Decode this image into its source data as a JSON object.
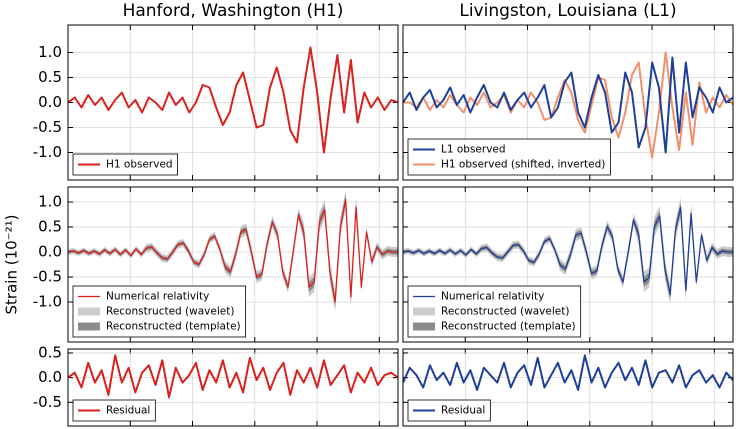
{
  "chart_data": [
    {
      "type": "line",
      "title": "Hanford, Washington (H1)",
      "ylim": [
        -1.55,
        1.55
      ],
      "legend": "lower left",
      "grid": true,
      "yticks": [
        {
          "value": -1.0,
          "label": "-1.0"
        },
        {
          "value": -0.5,
          "label": "-0.5"
        },
        {
          "value": 0.0,
          "label": "0.0"
        },
        {
          "value": 0.5,
          "label": "0.5"
        },
        {
          "value": 1.0,
          "label": "1.0"
        }
      ],
      "series": [
        {
          "name": "H1 observed",
          "color": "#d9211e",
          "values": [
            0.0,
            0.1,
            -0.1,
            0.15,
            -0.05,
            0.1,
            -0.15,
            0.05,
            0.2,
            -0.1,
            0.05,
            -0.2,
            0.1,
            0.0,
            -0.15,
            0.2,
            -0.05,
            0.1,
            -0.2,
            0.0,
            0.35,
            0.3,
            -0.1,
            -0.45,
            -0.2,
            0.35,
            0.6,
            0.05,
            -0.5,
            -0.45,
            0.3,
            0.7,
            0.2,
            -0.55,
            -0.8,
            0.3,
            1.1,
            0.2,
            -1.0,
            0.1,
            0.95,
            -0.2,
            0.85,
            -0.4,
            0.2,
            -0.1,
            0.1,
            -0.15,
            0.05,
            0.0
          ]
        }
      ]
    },
    {
      "type": "line",
      "title": "Livingston, Louisiana (L1)",
      "sharey": true,
      "legend": "lower left",
      "grid": true,
      "series": [
        {
          "name": "H1 observed (shifted, inverted)",
          "color": "#f0906c",
          "values": [
            0.0,
            0.0,
            -0.1,
            0.1,
            -0.15,
            0.05,
            -0.1,
            0.15,
            -0.05,
            -0.2,
            0.1,
            -0.05,
            0.2,
            -0.1,
            0.0,
            0.15,
            -0.2,
            0.05,
            -0.1,
            0.2,
            0.0,
            -0.35,
            -0.3,
            0.1,
            0.45,
            0.2,
            -0.35,
            -0.6,
            -0.05,
            0.5,
            0.45,
            -0.3,
            -0.7,
            -0.2,
            0.55,
            0.8,
            -0.3,
            -1.1,
            -0.2,
            1.0,
            -0.1,
            -0.95,
            0.2,
            -0.85,
            0.4,
            -0.2,
            0.1,
            -0.1,
            0.15,
            -0.05
          ]
        },
        {
          "name": "L1 observed",
          "color": "#1f3f99",
          "values": [
            0.0,
            0.2,
            -0.15,
            0.1,
            0.25,
            -0.1,
            0.05,
            0.3,
            -0.05,
            0.15,
            -0.2,
            0.1,
            0.35,
            0.0,
            -0.1,
            0.2,
            -0.15,
            0.05,
            0.2,
            -0.1,
            0.1,
            0.35,
            -0.3,
            -0.1,
            0.4,
            0.6,
            -0.2,
            -0.5,
            0.1,
            0.55,
            0.2,
            -0.6,
            -0.4,
            0.6,
            0.2,
            -0.9,
            -0.5,
            0.8,
            0.3,
            -1.0,
            0.9,
            -0.6,
            0.8,
            -0.3,
            0.3,
            0.1,
            -0.2,
            0.3,
            0.0,
            0.1
          ]
        }
      ],
      "legend_order": [
        1,
        0
      ]
    },
    {
      "type": "line",
      "ylabel": "Strain (10⁻²¹)",
      "ylim": [
        -1.8,
        1.3
      ],
      "legend": "lower left",
      "grid": true,
      "yticks": [
        {
          "value": -1.0,
          "label": "-1.0"
        },
        {
          "value": -0.5,
          "label": "-0.5"
        },
        {
          "value": 0.0,
          "label": "0.0"
        },
        {
          "value": 0.5,
          "label": "0.5"
        },
        {
          "value": 1.0,
          "label": "1.0"
        }
      ],
      "series": [
        {
          "name": "Numerical relativity",
          "color": "#d9211e",
          "values": [
            0,
            0.02,
            -0.02,
            0.03,
            -0.03,
            0.02,
            -0.04,
            0.04,
            -0.03,
            0.05,
            -0.05,
            0.04,
            -0.07,
            0.06,
            -0.05,
            0.08,
            0.1,
            -0.02,
            -0.12,
            -0.14,
            0.0,
            0.15,
            0.18,
            0.02,
            -0.2,
            -0.25,
            -0.05,
            0.25,
            0.32,
            0.05,
            -0.3,
            -0.4,
            -0.05,
            0.4,
            0.45,
            0.0,
            -0.5,
            -0.45,
            0.15,
            0.6,
            0.35,
            -0.4,
            -0.7,
            0.0,
            0.75,
            0.4,
            -0.7,
            -0.6,
            0.6,
            0.85,
            -0.4,
            -1.0,
            0.5,
            1.05,
            -0.9,
            0.9,
            -0.7,
            0.4,
            -0.2,
            0.1,
            -0.05,
            0.02,
            0.0,
            0.0
          ]
        },
        {
          "name": "Reconstructed (wavelet)",
          "color": "#cdcdcd",
          "errors": [
            0.06,
            0.06,
            0.06,
            0.06,
            0.06,
            0.06,
            0.06,
            0.06,
            0.06,
            0.06,
            0.06,
            0.06,
            0.06,
            0.06,
            0.06,
            0.08,
            0.08,
            0.08,
            0.08,
            0.08,
            0.08,
            0.08,
            0.08,
            0.08,
            0.08,
            0.08,
            0.08,
            0.08,
            0.08,
            0.08,
            0.12,
            0.12,
            0.12,
            0.12,
            0.12,
            0.12,
            0.12,
            0.12,
            0.12,
            0.12,
            0.12,
            0.12,
            0.12,
            0.12,
            0.12,
            0.2,
            0.2,
            0.2,
            0.2,
            0.2,
            0.2,
            0.2,
            0.2,
            0.2,
            0.2,
            0.2,
            0.1,
            0.1,
            0.1,
            0.1,
            0.1,
            0.1,
            0.1,
            0.1
          ]
        },
        {
          "name": "Reconstructed (template)",
          "color": "#8c8c8c",
          "errors": [
            0.03,
            0.03,
            0.03,
            0.03,
            0.03,
            0.03,
            0.03,
            0.03,
            0.03,
            0.03,
            0.03,
            0.03,
            0.03,
            0.03,
            0.03,
            0.04,
            0.04,
            0.04,
            0.04,
            0.04,
            0.04,
            0.04,
            0.04,
            0.04,
            0.04,
            0.04,
            0.04,
            0.04,
            0.04,
            0.04,
            0.06,
            0.06,
            0.06,
            0.06,
            0.06,
            0.06,
            0.06,
            0.06,
            0.06,
            0.06,
            0.06,
            0.06,
            0.06,
            0.06,
            0.06,
            0.1,
            0.1,
            0.1,
            0.1,
            0.1,
            0.1,
            0.1,
            0.1,
            0.1,
            0.1,
            0.1,
            0.05,
            0.05,
            0.05,
            0.05,
            0.05,
            0.05,
            0.05,
            0.05
          ]
        }
      ]
    },
    {
      "type": "line",
      "sharey": true,
      "legend": "lower left",
      "grid": true,
      "series": [
        {
          "name": "Numerical relativity",
          "color": "#1f3f99",
          "values": [
            0,
            0.02,
            -0.02,
            0.03,
            -0.03,
            0.02,
            -0.03,
            0.03,
            -0.03,
            0.04,
            -0.04,
            0.03,
            -0.06,
            0.05,
            -0.04,
            0.07,
            0.09,
            -0.02,
            -0.1,
            -0.12,
            0.0,
            0.13,
            0.15,
            0.02,
            -0.17,
            -0.21,
            -0.04,
            0.21,
            0.27,
            0.04,
            -0.26,
            -0.34,
            -0.04,
            0.34,
            0.38,
            0.0,
            -0.43,
            -0.38,
            0.13,
            0.51,
            0.3,
            -0.34,
            -0.6,
            0.0,
            0.64,
            0.34,
            -0.6,
            -0.51,
            0.51,
            0.72,
            -0.34,
            -0.85,
            0.43,
            0.89,
            -0.77,
            0.77,
            -0.6,
            0.34,
            -0.17,
            0.09,
            -0.04,
            0.02,
            0.0,
            0.0
          ]
        },
        {
          "name": "Reconstructed (wavelet)",
          "color": "#cdcdcd",
          "errors": [
            0.06,
            0.06,
            0.06,
            0.06,
            0.06,
            0.06,
            0.06,
            0.06,
            0.06,
            0.06,
            0.06,
            0.06,
            0.06,
            0.06,
            0.06,
            0.08,
            0.08,
            0.08,
            0.08,
            0.08,
            0.08,
            0.08,
            0.08,
            0.08,
            0.08,
            0.08,
            0.08,
            0.08,
            0.08,
            0.08,
            0.12,
            0.12,
            0.12,
            0.12,
            0.12,
            0.12,
            0.12,
            0.12,
            0.12,
            0.12,
            0.12,
            0.12,
            0.12,
            0.12,
            0.12,
            0.2,
            0.2,
            0.2,
            0.2,
            0.2,
            0.2,
            0.2,
            0.2,
            0.2,
            0.2,
            0.2,
            0.1,
            0.1,
            0.1,
            0.1,
            0.1,
            0.1,
            0.1,
            0.1
          ]
        },
        {
          "name": "Reconstructed (template)",
          "color": "#8c8c8c",
          "errors": [
            0.03,
            0.03,
            0.03,
            0.03,
            0.03,
            0.03,
            0.03,
            0.03,
            0.03,
            0.03,
            0.03,
            0.03,
            0.03,
            0.03,
            0.03,
            0.04,
            0.04,
            0.04,
            0.04,
            0.04,
            0.04,
            0.04,
            0.04,
            0.04,
            0.04,
            0.04,
            0.04,
            0.04,
            0.04,
            0.04,
            0.06,
            0.06,
            0.06,
            0.06,
            0.06,
            0.06,
            0.06,
            0.06,
            0.06,
            0.06,
            0.06,
            0.06,
            0.06,
            0.06,
            0.06,
            0.1,
            0.1,
            0.1,
            0.1,
            0.1,
            0.1,
            0.1,
            0.1,
            0.1,
            0.1,
            0.1,
            0.05,
            0.05,
            0.05,
            0.05,
            0.05,
            0.05,
            0.05,
            0.05
          ]
        }
      ]
    },
    {
      "type": "line",
      "ylim": [
        -0.98,
        0.58
      ],
      "legend": "lower left",
      "grid": true,
      "yticks": [
        {
          "value": -0.5,
          "label": "-0.5"
        },
        {
          "value": 0.0,
          "label": "0.0"
        },
        {
          "value": 0.5,
          "label": "0.5"
        }
      ],
      "series": [
        {
          "name": "Residual",
          "color": "#d9211e",
          "values": [
            0,
            0.1,
            -0.2,
            0.3,
            -0.1,
            0.15,
            -0.35,
            0.45,
            -0.1,
            0.2,
            -0.3,
            0.1,
            0.25,
            -0.15,
            0.35,
            -0.4,
            0.2,
            -0.1,
            0.05,
            0.3,
            -0.25,
            0.15,
            -0.1,
            0.35,
            -0.2,
            0.1,
            -0.3,
            0.4,
            -0.05,
            0.2,
            -0.25,
            0.1,
            0.3,
            -0.35,
            0.15,
            -0.1,
            0.2,
            -0.2,
            0.35,
            -0.15,
            0.05,
            0.25,
            -0.3,
            0.1,
            -0.1,
            0.2,
            -0.15,
            0.05,
            0.1,
            0.0
          ]
        }
      ]
    },
    {
      "type": "line",
      "sharey": true,
      "legend": "lower left",
      "grid": true,
      "series": [
        {
          "name": "Residual",
          "color": "#1f3f99",
          "values": [
            -0.1,
            0.2,
            0.05,
            -0.2,
            0.25,
            -0.05,
            0.1,
            -0.15,
            0.3,
            -0.1,
            0.15,
            -0.25,
            0.2,
            0.05,
            -0.1,
            0.3,
            -0.2,
            0.1,
            0.25,
            -0.15,
            0.4,
            -0.2,
            0.05,
            0.3,
            -0.1,
            0.15,
            -0.25,
            0.45,
            -0.1,
            0.2,
            -0.2,
            0.1,
            0.3,
            -0.05,
            0.2,
            -0.15,
            0.35,
            -0.2,
            0.1,
            0.15,
            -0.1,
            0.25,
            -0.2,
            0.05,
            0.15,
            -0.1,
            0.05,
            -0.2,
            0.1,
            -0.05
          ]
        }
      ]
    }
  ]
}
